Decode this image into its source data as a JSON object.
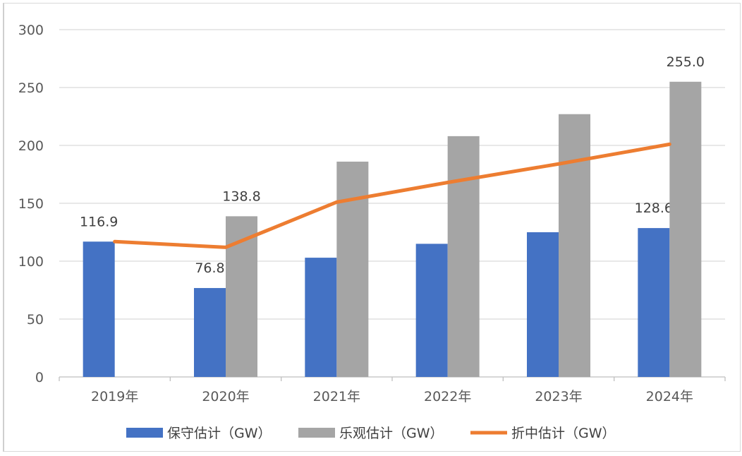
{
  "chart_data": {
    "type": "bar",
    "categories": [
      "2019年",
      "2020年",
      "2021年",
      "2022年",
      "2023年",
      "2024年"
    ],
    "series": [
      {
        "name": "保守估计（GW）",
        "type": "bar",
        "color": "#4472C4",
        "values": [
          116.9,
          76.8,
          103,
          115,
          125,
          128.6
        ],
        "labels": [
          "116.9",
          "76.8",
          null,
          null,
          null,
          "128.6"
        ]
      },
      {
        "name": "乐观估计（GW）",
        "type": "bar",
        "color": "#A5A5A5",
        "values": [
          null,
          138.8,
          186,
          208,
          227,
          255.0
        ],
        "labels": [
          null,
          "138.8",
          null,
          null,
          null,
          "255.0"
        ]
      },
      {
        "name": "折中估计（GW）",
        "type": "line",
        "color": "#ED7D31",
        "values": [
          116.9,
          112,
          151,
          168,
          184,
          201
        ],
        "labels": [
          null,
          null,
          null,
          null,
          null,
          null
        ]
      }
    ],
    "ylim": [
      0,
      300
    ],
    "yticks": [
      "0",
      "50",
      "100",
      "150",
      "200",
      "250",
      "300"
    ],
    "title": "",
    "xlabel": "",
    "ylabel": "",
    "grid": true,
    "legend": "bottom"
  }
}
